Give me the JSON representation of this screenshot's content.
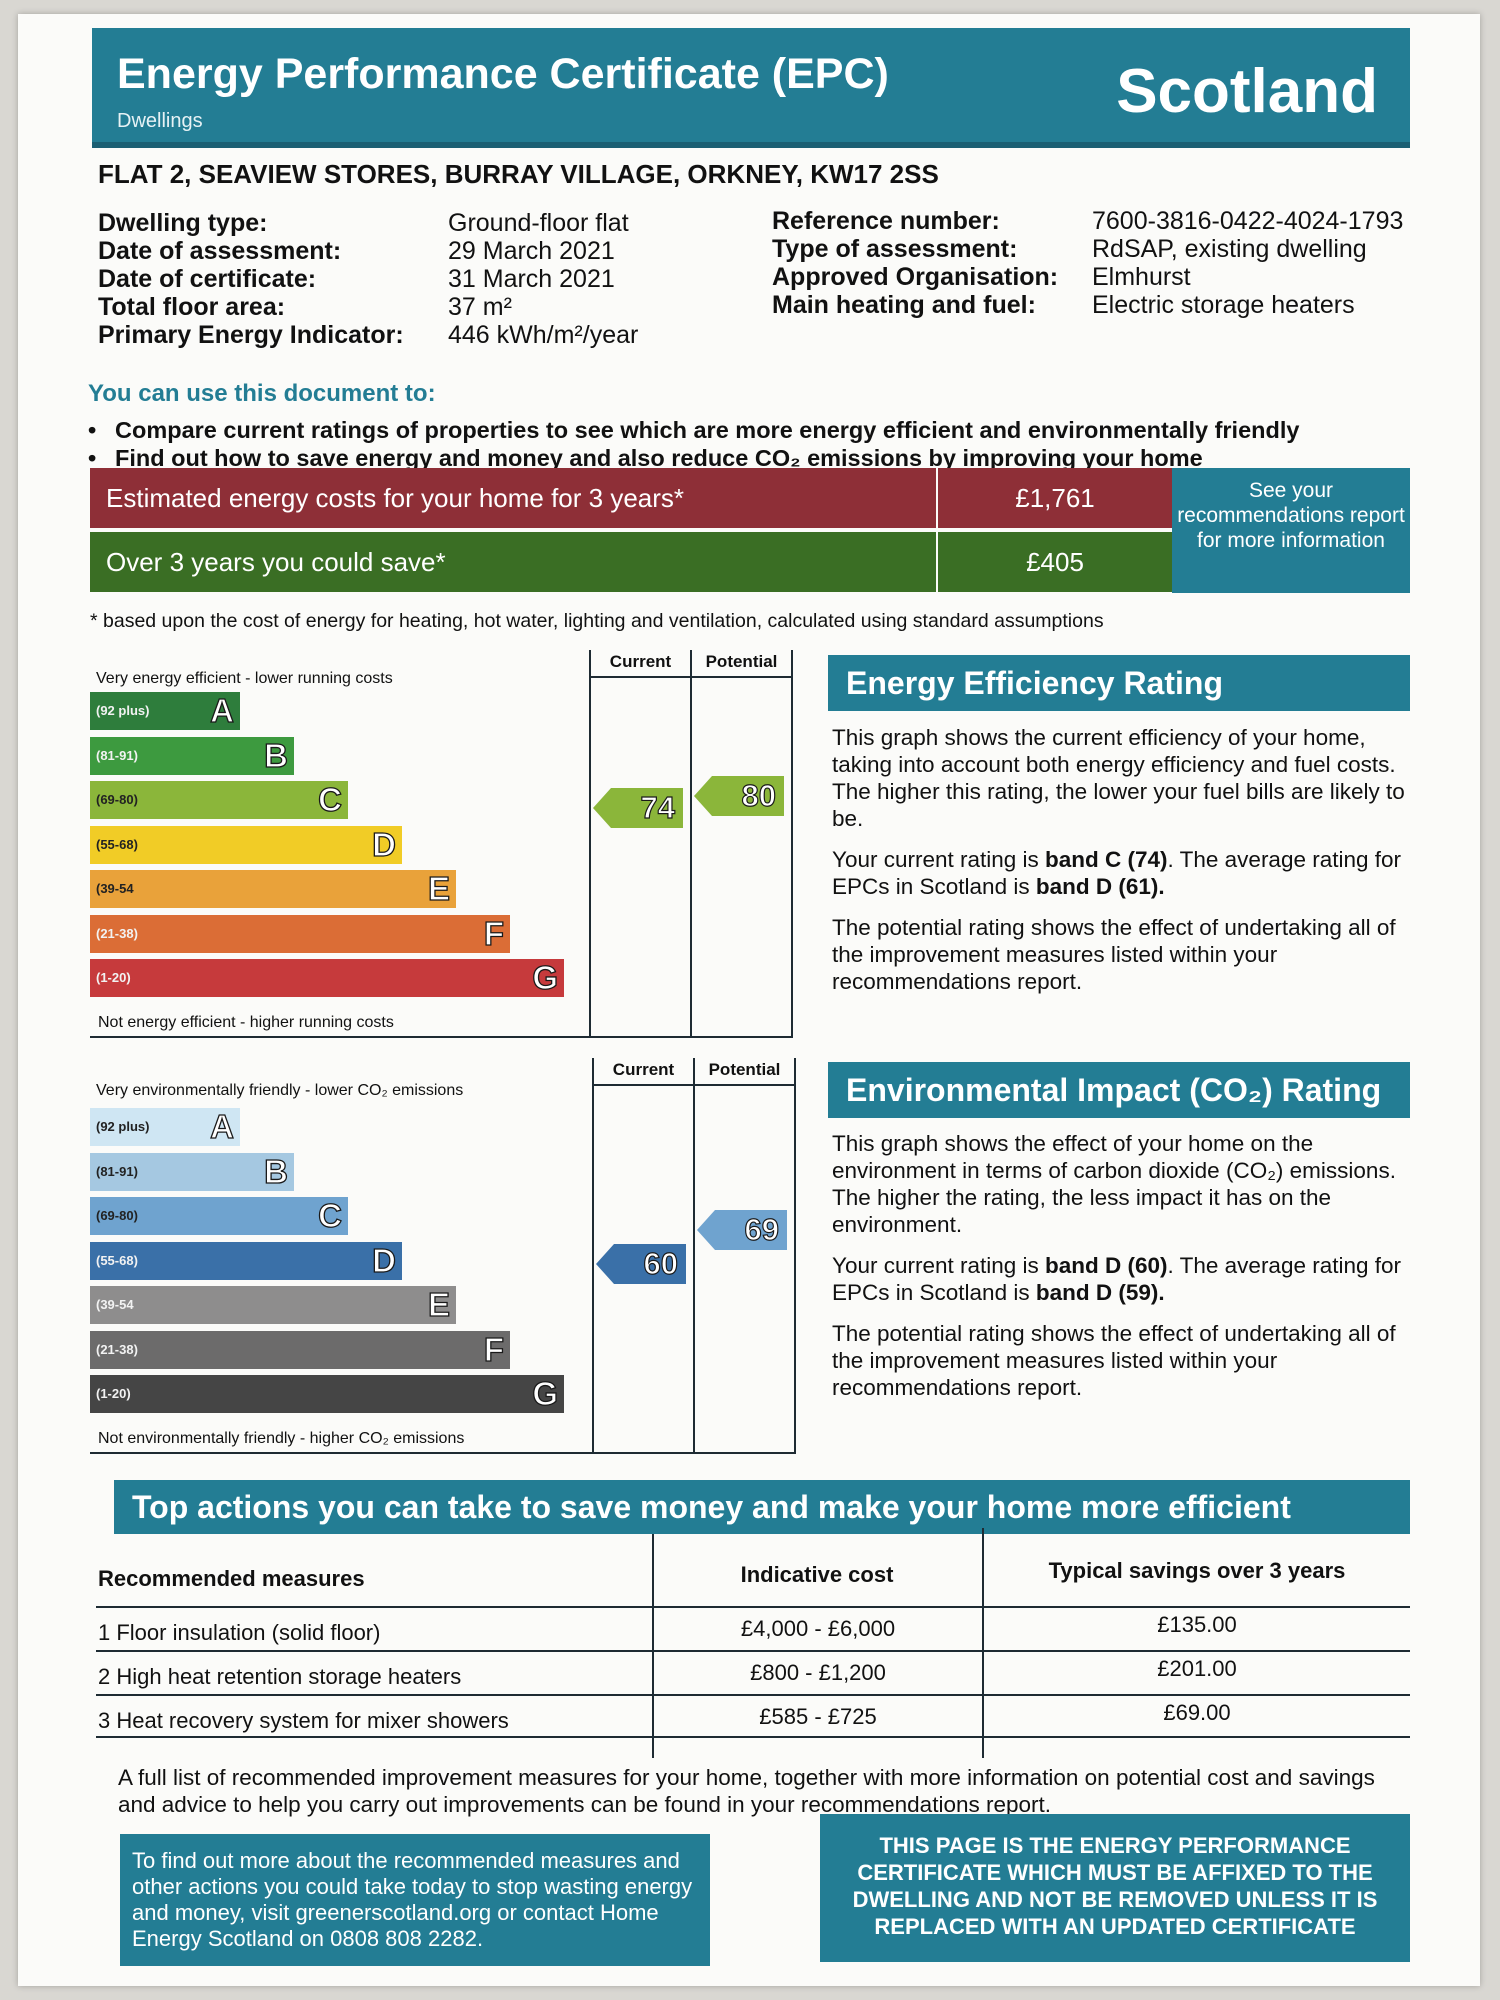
{
  "header": {
    "title": "Energy Performance Certificate (EPC)",
    "subtitle": "Dwellings",
    "region": "Scotland"
  },
  "address": "FLAT 2, SEAVIEW STORES, BURRAY VILLAGE, ORKNEY, KW17 2SS",
  "details_left": [
    {
      "label": "Dwelling type:",
      "value": "Ground-floor flat"
    },
    {
      "label": "Date of assessment:",
      "value": "29 March 2021"
    },
    {
      "label": "Date of certificate:",
      "value": "31 March 2021"
    },
    {
      "label": "Total floor area:",
      "value": "37 m²"
    },
    {
      "label": "Primary Energy Indicator:",
      "value": "446 kWh/m²/year"
    }
  ],
  "details_right": [
    {
      "label": "Reference number:",
      "value": "7600-3816-0422-4024-1793"
    },
    {
      "label": "Type of assessment:",
      "value": "RdSAP, existing dwelling"
    },
    {
      "label": "Approved Organisation:",
      "value": "Elmhurst"
    },
    {
      "label": "Main heating and fuel:",
      "value": "Electric storage heaters"
    }
  ],
  "use": {
    "heading": "You can use this document to:",
    "bullets": [
      "Compare current ratings of properties to see which are more energy efficient and environmentally friendly",
      "Find out how to save energy and money and also reduce CO₂ emissions by improving your home"
    ]
  },
  "costs": {
    "estimated_label": "Estimated energy costs for your home for 3 years*",
    "estimated_value": "£1,761",
    "save_label": "Over 3 years you could save*",
    "save_value": "£405",
    "see_report": "See your recommendations report for more information",
    "footnote": "* based upon the cost of energy for heating, hot water, lighting and ventilation, calculated using standard assumptions"
  },
  "energy_chart": {
    "top_label": "Very energy efficient - lower running costs",
    "bottom_label": "Not energy efficient - higher running costs",
    "col_current": "Current",
    "col_potential": "Potential",
    "current": "74",
    "potential": "80",
    "bands": [
      {
        "range": "(92 plus)",
        "letter": "A",
        "color": "#2e7d3c"
      },
      {
        "range": "(81-91)",
        "letter": "B",
        "color": "#3d9a3f"
      },
      {
        "range": "(69-80)",
        "letter": "C",
        "color": "#8bb63a"
      },
      {
        "range": "(55-68)",
        "letter": "D",
        "color": "#f1cc26"
      },
      {
        "range": "(39-54",
        "letter": "E",
        "color": "#e9a23a"
      },
      {
        "range": "(21-38)",
        "letter": "F",
        "color": "#db6d36"
      },
      {
        "range": "(1-20)",
        "letter": "G",
        "color": "#c63a3c"
      }
    ]
  },
  "co2_chart": {
    "top_label": "Very environmentally friendly - lower CO₂ emissions",
    "bottom_label": "Not environmentally friendly - higher CO₂ emissions",
    "col_current": "Current",
    "col_potential": "Potential",
    "current": "60",
    "potential": "69",
    "bands": [
      {
        "range": "(92 plus)",
        "letter": "A",
        "color": "#cfe6f3"
      },
      {
        "range": "(81-91)",
        "letter": "B",
        "color": "#a5c8e1"
      },
      {
        "range": "(69-80)",
        "letter": "C",
        "color": "#6fa3cf"
      },
      {
        "range": "(55-68)",
        "letter": "D",
        "color": "#3a70a8"
      },
      {
        "range": "(39-54",
        "letter": "E",
        "color": "#8e8d8d"
      },
      {
        "range": "(21-38)",
        "letter": "F",
        "color": "#6c6b6b"
      },
      {
        "range": "(1-20)",
        "letter": "G",
        "color": "#454545"
      }
    ]
  },
  "energy_rating": {
    "heading": "Energy Efficiency Rating",
    "p1": "This graph shows the current efficiency of your home, taking into account both energy efficiency and fuel costs. The higher this rating, the lower your fuel bills are likely to be.",
    "p2_pre": "Your current rating is ",
    "p2_band": "band C (74)",
    "p2_mid": ". The average rating for EPCs in Scotland is ",
    "p2_avg": "band D (61).",
    "p3": "The potential rating shows the effect of undertaking all of the improvement measures listed within your recommendations report."
  },
  "co2_rating": {
    "heading": "Environmental Impact (CO₂) Rating",
    "p1": "This graph shows the effect of your home on the environment in terms of carbon dioxide (CO₂) emissions. The higher the rating, the less impact it has on the environment.",
    "p2_pre": "Your current rating is ",
    "p2_band": "band D (60)",
    "p2_mid": ". The average rating for EPCs in Scotland is ",
    "p2_avg": "band D (59).",
    "p3": "The potential rating shows the effect of undertaking all of the improvement measures listed within your recommendations report."
  },
  "actions": {
    "heading": "Top actions you can take to save money and make your home more efficient",
    "col_measures": "Recommended measures",
    "col_cost": "Indicative cost",
    "col_savings": "Typical savings over 3 years",
    "rows": [
      {
        "measure": "1 Floor insulation (solid floor)",
        "cost": "£4,000 - £6,000",
        "saving": "£135.00"
      },
      {
        "measure": "2 High heat retention storage heaters",
        "cost": "£800 - £1,200",
        "saving": "£201.00"
      },
      {
        "measure": "3 Heat recovery system for mixer showers",
        "cost": "£585 - £725",
        "saving": "£69.00"
      }
    ]
  },
  "full_list_note": "A full list of recommended improvement measures for your home, together with more information on potential cost and savings and advice to help you carry out improvements can be found in your recommendations report.",
  "find_out_more": "To find out more about the recommended measures and other actions you could take today to stop wasting energy and money, visit greenerscotland.org or contact Home Energy Scotland on 0808 808 2282.",
  "affix_notice": "THIS PAGE IS THE ENERGY PERFORMANCE CERTIFICATE WHICH MUST BE AFFIXED TO THE DWELLING AND NOT BE REMOVED UNLESS IT IS REPLACED WITH AN UPDATED CERTIFICATE"
}
